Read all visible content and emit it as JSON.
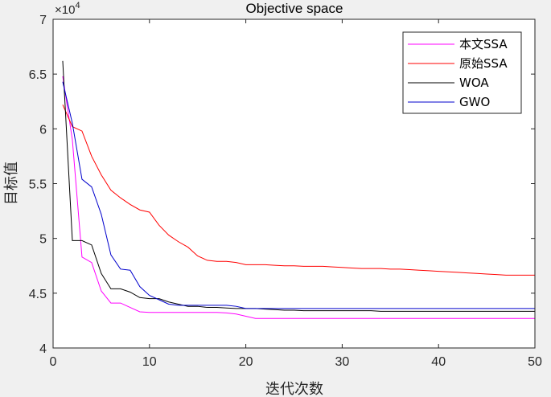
{
  "chart_data": {
    "type": "line",
    "title": "Objective space",
    "xlabel": "迭代次数",
    "ylabel": "目标值",
    "xlim": [
      0,
      50
    ],
    "ylim": [
      40000,
      70000
    ],
    "xticks": [
      0,
      10,
      20,
      30,
      40,
      50
    ],
    "xtick_labels": [
      "0",
      "10",
      "20",
      "30",
      "40",
      "50"
    ],
    "yticks": [
      40000,
      45000,
      50000,
      55000,
      60000,
      65000,
      70000
    ],
    "ytick_labels": [
      "4",
      "4.5",
      "5",
      "5.5",
      "6",
      "6.5",
      "7"
    ],
    "y_exponent_base": "×10",
    "y_exponent_power": "4",
    "legend_position": "top-right",
    "grid": false,
    "x": [
      1,
      2,
      3,
      4,
      5,
      6,
      7,
      8,
      9,
      10,
      11,
      12,
      13,
      14,
      15,
      16,
      17,
      18,
      19,
      20,
      21,
      22,
      23,
      24,
      25,
      26,
      27,
      28,
      29,
      30,
      31,
      32,
      33,
      34,
      35,
      36,
      37,
      38,
      39,
      40,
      41,
      42,
      43,
      44,
      45,
      46,
      47,
      48,
      49,
      50
    ],
    "series": [
      {
        "name": "本文SSA",
        "color": "#ff00ff",
        "values": [
          64800,
          59000,
          48300,
          47800,
          45200,
          44100,
          44100,
          43700,
          43300,
          43250,
          43250,
          43250,
          43250,
          43250,
          43250,
          43250,
          43250,
          43200,
          43100,
          42900,
          42700,
          42700,
          42700,
          42700,
          42700,
          42700,
          42700,
          42700,
          42700,
          42700,
          42700,
          42700,
          42700,
          42700,
          42700,
          42700,
          42700,
          42700,
          42700,
          42700,
          42700,
          42700,
          42700,
          42700,
          42700,
          42700,
          42700,
          42700,
          42700,
          42700
        ]
      },
      {
        "name": "原始SSA",
        "color": "#ff0000",
        "values": [
          62200,
          60200,
          59800,
          57500,
          55800,
          54400,
          53700,
          53100,
          52600,
          52400,
          51200,
          50300,
          49700,
          49200,
          48400,
          48000,
          47900,
          47900,
          47800,
          47600,
          47600,
          47600,
          47550,
          47500,
          47500,
          47450,
          47450,
          47450,
          47400,
          47350,
          47300,
          47250,
          47250,
          47250,
          47200,
          47200,
          47150,
          47100,
          47050,
          47000,
          46950,
          46900,
          46850,
          46800,
          46750,
          46700,
          46650,
          46650,
          46650,
          46650
        ]
      },
      {
        "name": "WOA",
        "color": "#000000",
        "values": [
          66200,
          49800,
          49800,
          49400,
          46800,
          45400,
          45400,
          45100,
          44600,
          44500,
          44500,
          44200,
          44000,
          43800,
          43800,
          43700,
          43700,
          43650,
          43600,
          43600,
          43600,
          43550,
          43500,
          43450,
          43450,
          43400,
          43400,
          43400,
          43400,
          43400,
          43400,
          43400,
          43400,
          43350,
          43350,
          43350,
          43350,
          43350,
          43350,
          43350,
          43350,
          43350,
          43350,
          43350,
          43350,
          43350,
          43350,
          43350,
          43350,
          43350
        ]
      },
      {
        "name": "GWO",
        "color": "#0000cc",
        "values": [
          64300,
          60500,
          55400,
          54700,
          52200,
          48500,
          47200,
          47100,
          45600,
          44800,
          44400,
          44000,
          43900,
          43900,
          43900,
          43900,
          43900,
          43900,
          43800,
          43600,
          43600,
          43600,
          43600,
          43600,
          43600,
          43600,
          43600,
          43600,
          43600,
          43600,
          43600,
          43600,
          43600,
          43600,
          43600,
          43600,
          43600,
          43600,
          43600,
          43600,
          43600,
          43600,
          43600,
          43600,
          43600,
          43600,
          43600,
          43600,
          43600,
          43600
        ]
      }
    ]
  }
}
